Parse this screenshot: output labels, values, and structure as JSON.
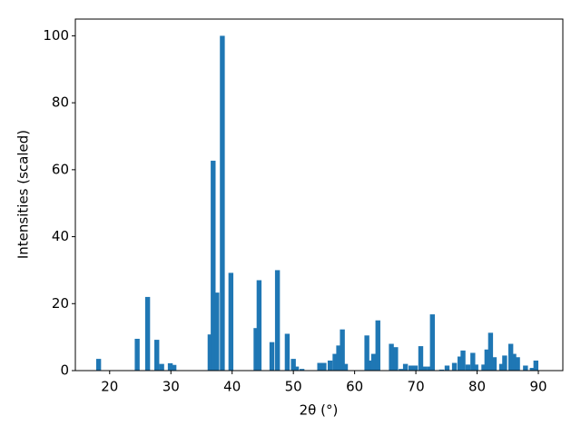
{
  "chart_data": {
    "type": "bar",
    "x_label": "2θ (°)",
    "y_label": "Intensities (scaled)",
    "x": [
      18.2,
      24.5,
      26.2,
      27.7,
      28.5,
      29.9,
      30.5,
      36.4,
      36.9,
      37.5,
      38.4,
      39.8,
      43.9,
      44.4,
      46.5,
      47.4,
      49.0,
      50.0,
      50.5,
      51.4,
      54.3,
      55.0,
      56.0,
      56.8,
      57.4,
      58.0,
      58.5,
      62.0,
      62.6,
      63.1,
      63.8,
      66.0,
      66.7,
      67.6,
      68.3,
      69.2,
      69.9,
      70.8,
      71.5,
      72.3,
      72.7,
      74.2,
      75.1,
      76.3,
      77.2,
      77.7,
      78.5,
      79.3,
      79.8,
      81.1,
      81.6,
      82.2,
      82.8,
      84.0,
      84.5,
      85.5,
      86.0,
      86.6,
      87.9,
      89.0,
      89.6
    ],
    "values": [
      3.5,
      9.5,
      22,
      9.2,
      2,
      2.2,
      1.7,
      10.8,
      62.7,
      23.3,
      100,
      29.2,
      12.7,
      27,
      8.5,
      30,
      11,
      3.5,
      1.2,
      0.5,
      2.3,
      2.3,
      3,
      5,
      7.5,
      12.3,
      2,
      10.5,
      3,
      5,
      15,
      8,
      7,
      0.5,
      2,
      1.5,
      1.5,
      7.3,
      1.2,
      1.2,
      16.8,
      0.3,
      1.5,
      2.3,
      4.2,
      6,
      1.8,
      5.3,
      1.8,
      1.8,
      6.3,
      11.3,
      4,
      2,
      4.5,
      8,
      5,
      4,
      1.5,
      0.8,
      3
    ],
    "color": "#1f77b4",
    "xlim": [
      14.4,
      94.0
    ],
    "xticks": [
      20,
      30,
      40,
      50,
      60,
      70,
      80,
      90
    ],
    "ylim": [
      0,
      105
    ],
    "yticks": [
      0,
      20,
      40,
      60,
      80,
      100
    ]
  }
}
